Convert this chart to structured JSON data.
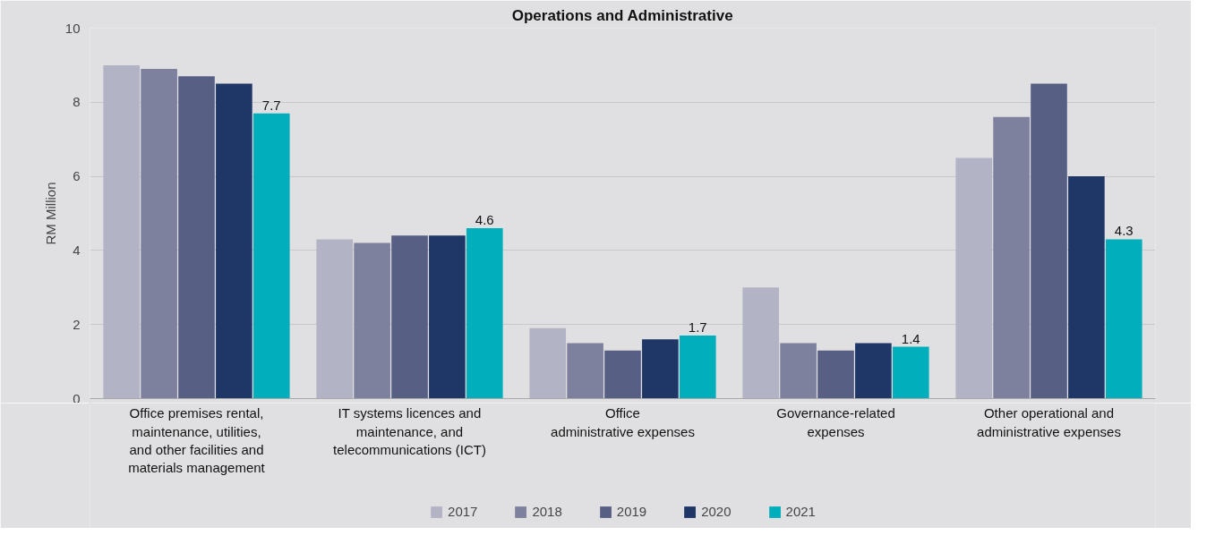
{
  "chart_data": {
    "type": "bar",
    "title": "Operations and Administrative",
    "ylabel": "RM Million",
    "categories": [
      "Office premises rental,\nmaintenance, utilities,\nand other facilities and\nmaterials management",
      "IT systems licences and\nmaintenance, and\ntelecommunications (ICT)",
      "Office\nadministrative expenses",
      "Governance-related\nexpenses",
      "Other operational and\nadministrative expenses"
    ],
    "series": [
      {
        "name": "2017",
        "color": "#b3b3c6",
        "values": [
          9.0,
          4.3,
          1.9,
          3.0,
          6.5
        ]
      },
      {
        "name": "2018",
        "color": "#7e819e",
        "values": [
          8.9,
          4.2,
          1.5,
          1.5,
          7.6
        ]
      },
      {
        "name": "2019",
        "color": "#575f85",
        "values": [
          8.7,
          4.4,
          1.3,
          1.3,
          8.5
        ]
      },
      {
        "name": "2020",
        "color": "#1e3766",
        "values": [
          8.5,
          4.4,
          1.6,
          1.5,
          6.0
        ]
      },
      {
        "name": "2021",
        "color": "#00afbb",
        "values": [
          7.7,
          4.6,
          1.7,
          1.4,
          4.3
        ],
        "value_labels": [
          "7.7",
          "4.6",
          "1.7",
          "1.4",
          "4.3"
        ]
      }
    ],
    "ylim": [
      0,
      10
    ],
    "yticks": [
      0,
      2,
      4,
      6,
      8,
      10
    ],
    "grid": "y",
    "legend": "bottom"
  }
}
